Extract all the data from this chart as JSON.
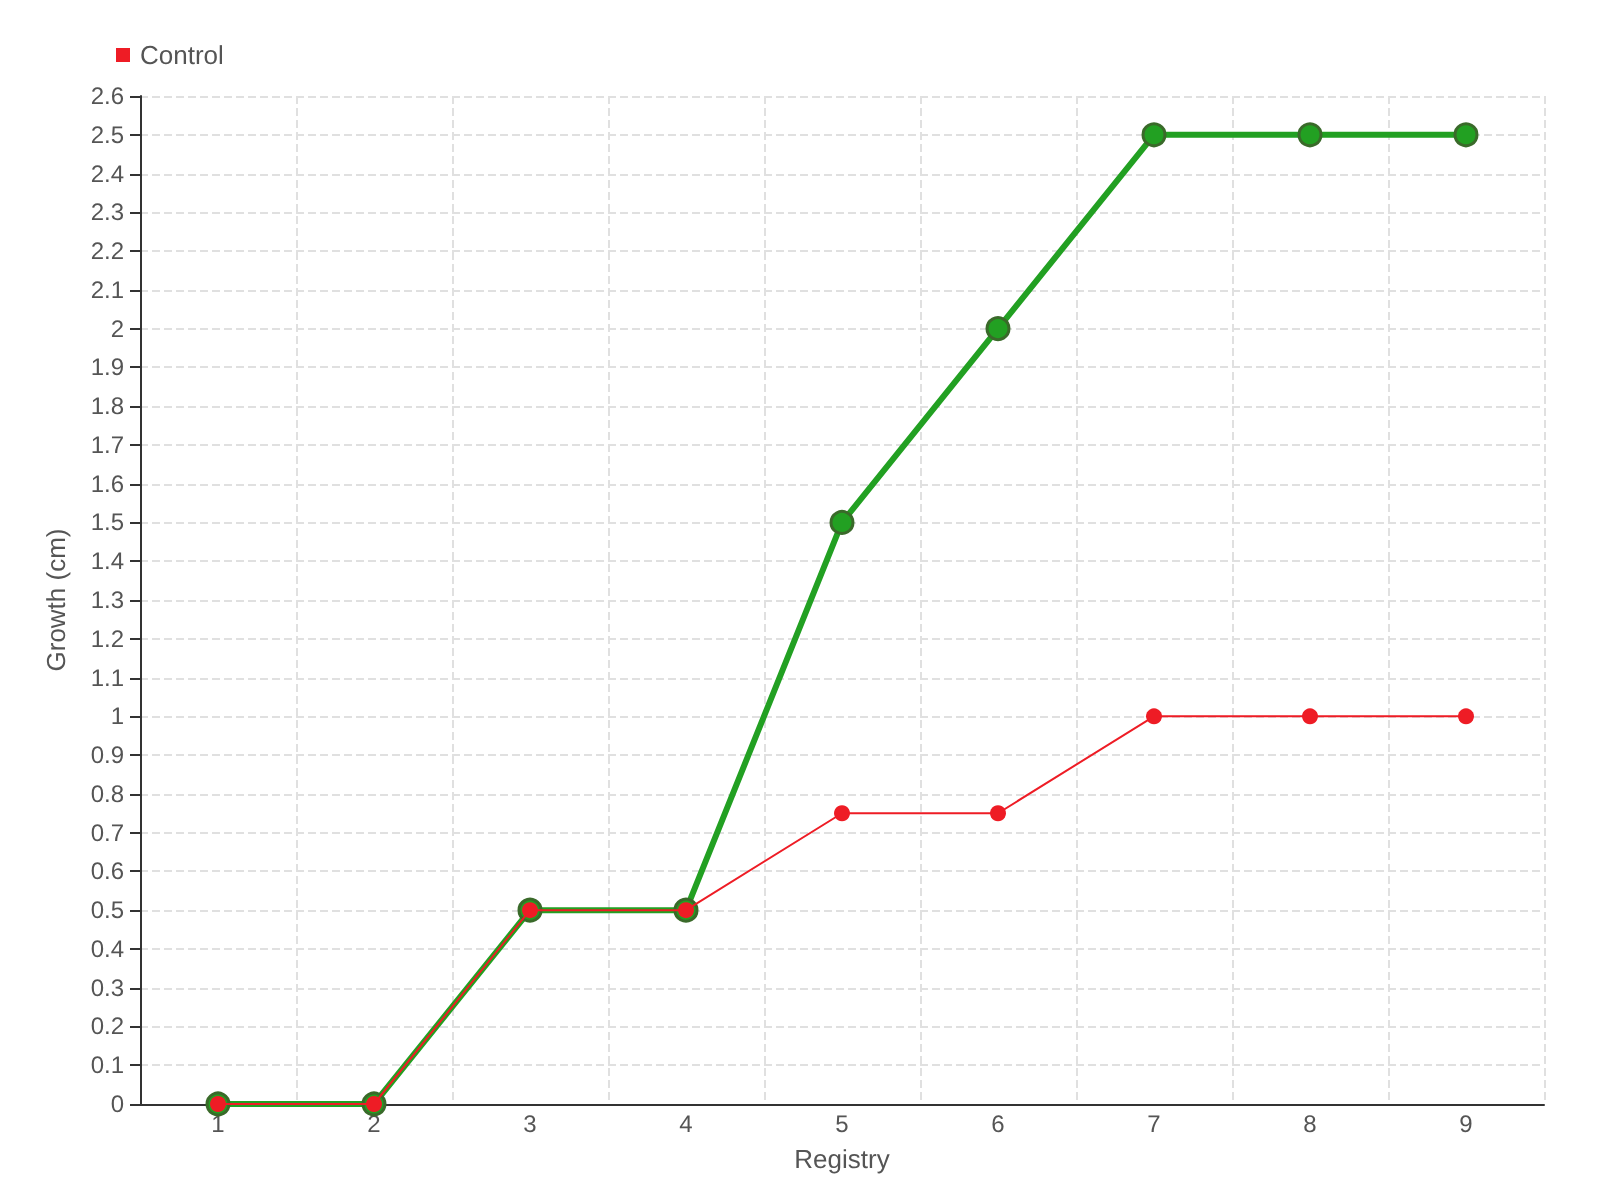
{
  "chart_data": {
    "type": "line",
    "xlabel": "Registry",
    "ylabel": "Growth (cm)",
    "categories": [
      "1",
      "2",
      "3",
      "4",
      "5",
      "6",
      "7",
      "8",
      "9"
    ],
    "series": [
      {
        "color": "#22a022",
        "values": [
          0,
          0,
          0.5,
          0.5,
          1.5,
          2,
          2.5,
          2.5,
          2.5
        ]
      },
      {
        "name": "Control",
        "color": "#ee1c25",
        "values": [
          0,
          0,
          0.5,
          0.5,
          0.75,
          0.75,
          1,
          1,
          1
        ]
      }
    ],
    "ylim": [
      0,
      2.6
    ],
    "yticks": [
      0,
      0.1,
      0.2,
      0.3,
      0.4,
      0.5,
      0.6,
      0.7,
      0.8,
      0.9,
      1,
      1.1,
      1.2,
      1.3,
      1.4,
      1.5,
      1.6,
      1.7,
      1.8,
      1.9,
      2,
      2.1,
      2.2,
      2.3,
      2.4,
      2.5,
      2.6
    ],
    "grid": true,
    "legend": "top left",
    "marker": "circle",
    "line_style": "solid"
  }
}
